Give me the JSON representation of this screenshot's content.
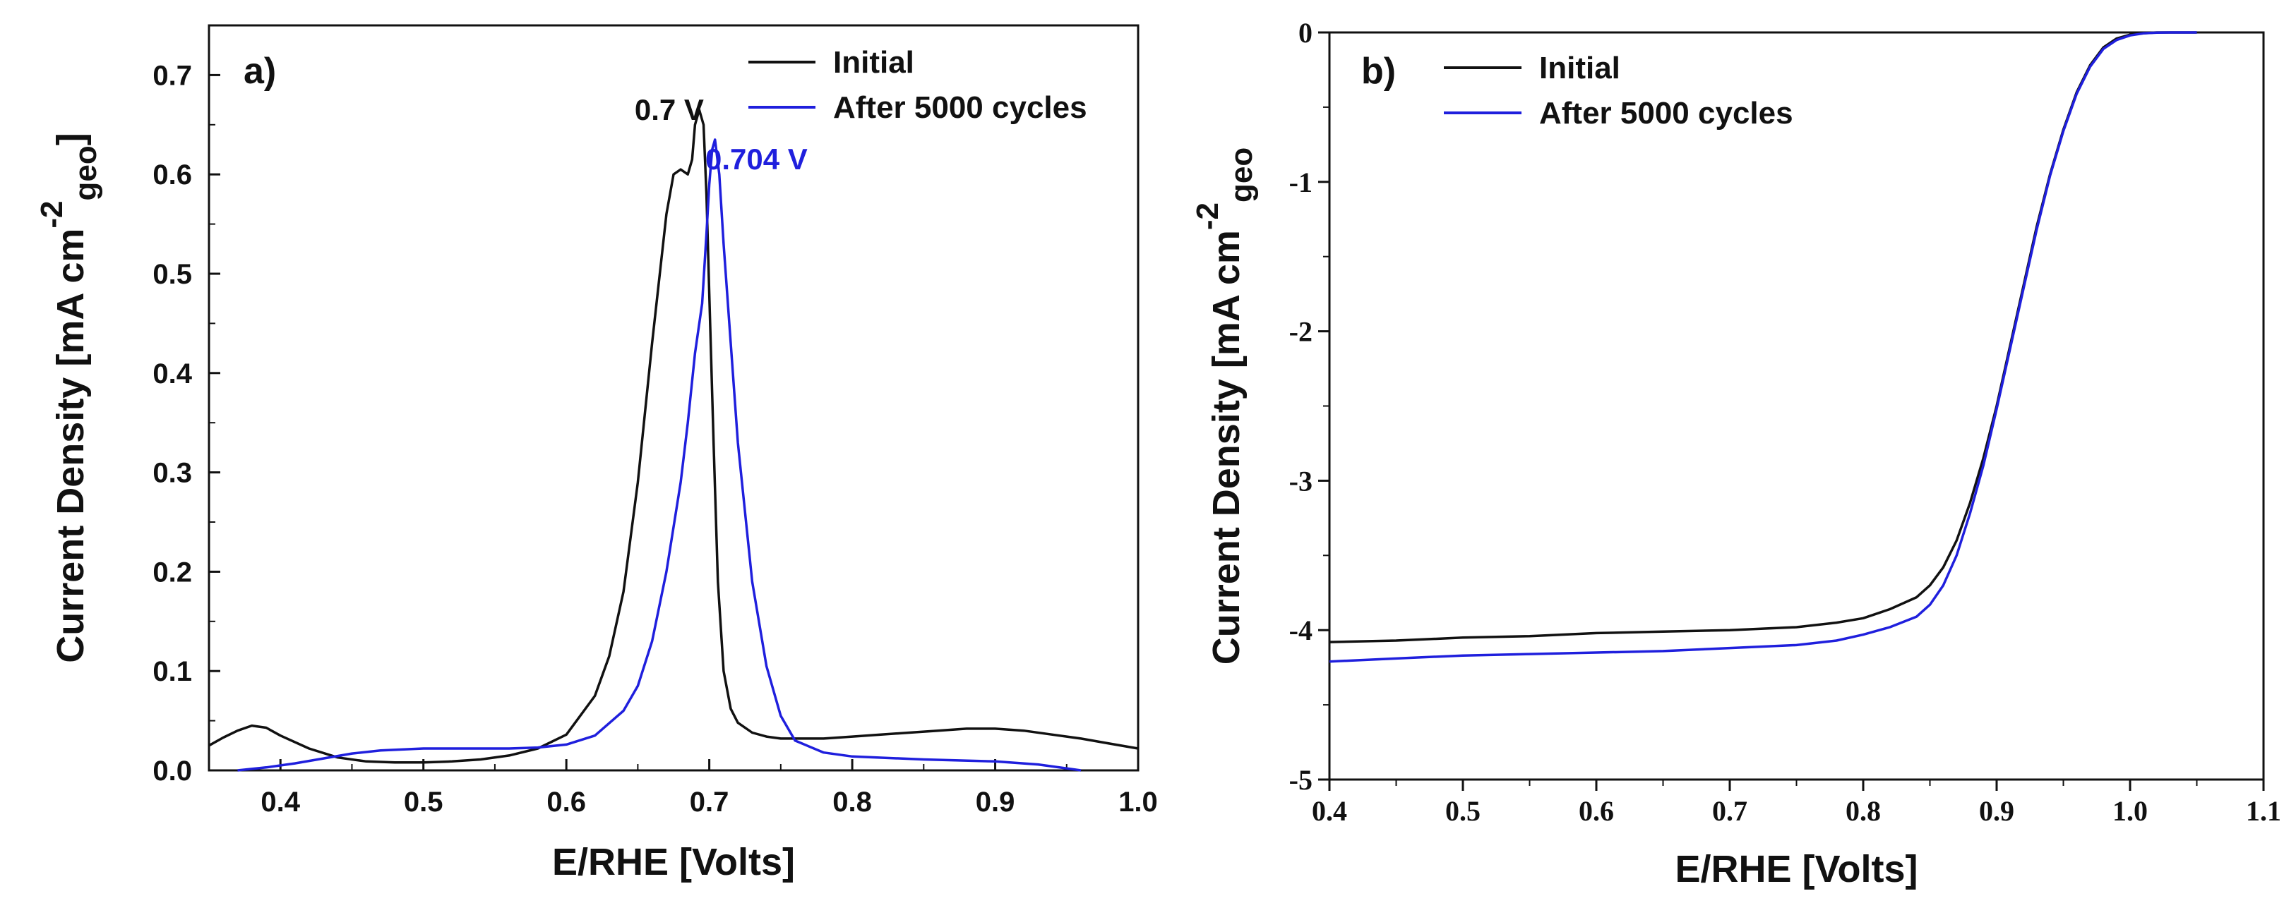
{
  "chart_data": [
    {
      "panel": "a)",
      "type": "line",
      "xlabel": "E/RHE [Volts]",
      "ylabel": "Current Density [mA cm",
      "ylabel_sup": "-2",
      "ylabel_sub": "geo",
      "ylabel_end": "]",
      "xlim": [
        0.35,
        1.0
      ],
      "ylim": [
        0.0,
        0.75
      ],
      "xticks": [
        0.4,
        0.5,
        0.6,
        0.7,
        0.8,
        0.9,
        1.0
      ],
      "xtick_labels": [
        "0.4",
        "0.5",
        "0.6",
        "0.7",
        "0.8",
        "0.9",
        "1.0"
      ],
      "yticks": [
        0.0,
        0.1,
        0.2,
        0.3,
        0.4,
        0.5,
        0.6,
        0.7
      ],
      "ytick_labels": [
        "0.0",
        "0.1",
        "0.2",
        "0.3",
        "0.4",
        "0.5",
        "0.6",
        "0.7"
      ],
      "legend": [
        "Initial",
        "After 5000 cycles"
      ],
      "annotations": [
        {
          "text": "0.7 V",
          "color": "#111111",
          "x": 0.672,
          "y": 0.655
        },
        {
          "text": "0.704 V",
          "color": "#1f1fdd",
          "x": 0.733,
          "y": 0.605
        }
      ],
      "series": [
        {
          "name": "Initial",
          "color": "#111111",
          "x": [
            0.35,
            0.36,
            0.37,
            0.38,
            0.39,
            0.4,
            0.42,
            0.44,
            0.46,
            0.48,
            0.5,
            0.52,
            0.54,
            0.56,
            0.58,
            0.6,
            0.62,
            0.63,
            0.64,
            0.65,
            0.66,
            0.67,
            0.675,
            0.68,
            0.685,
            0.688,
            0.69,
            0.693,
            0.696,
            0.698,
            0.7,
            0.703,
            0.706,
            0.71,
            0.715,
            0.72,
            0.73,
            0.74,
            0.75,
            0.76,
            0.78,
            0.8,
            0.82,
            0.84,
            0.86,
            0.88,
            0.9,
            0.92,
            0.94,
            0.96,
            0.98,
            1.0
          ],
          "y": [
            0.025,
            0.033,
            0.04,
            0.045,
            0.043,
            0.035,
            0.022,
            0.013,
            0.009,
            0.008,
            0.008,
            0.009,
            0.011,
            0.015,
            0.022,
            0.036,
            0.075,
            0.115,
            0.18,
            0.29,
            0.43,
            0.56,
            0.6,
            0.605,
            0.6,
            0.615,
            0.65,
            0.665,
            0.65,
            0.58,
            0.48,
            0.33,
            0.19,
            0.1,
            0.062,
            0.048,
            0.038,
            0.034,
            0.032,
            0.032,
            0.032,
            0.034,
            0.036,
            0.038,
            0.04,
            0.042,
            0.042,
            0.04,
            0.036,
            0.032,
            0.027,
            0.022
          ]
        },
        {
          "name": "After 5000 cycles",
          "color": "#1f1fdd",
          "x": [
            0.37,
            0.39,
            0.41,
            0.43,
            0.45,
            0.47,
            0.5,
            0.53,
            0.56,
            0.58,
            0.6,
            0.62,
            0.64,
            0.65,
            0.66,
            0.67,
            0.68,
            0.685,
            0.69,
            0.695,
            0.698,
            0.7,
            0.702,
            0.704,
            0.707,
            0.71,
            0.715,
            0.72,
            0.73,
            0.74,
            0.75,
            0.76,
            0.78,
            0.8,
            0.85,
            0.9,
            0.93,
            0.96
          ],
          "y": [
            0.0,
            0.003,
            0.007,
            0.012,
            0.017,
            0.02,
            0.022,
            0.022,
            0.022,
            0.023,
            0.026,
            0.035,
            0.06,
            0.085,
            0.13,
            0.2,
            0.29,
            0.35,
            0.42,
            0.47,
            0.54,
            0.59,
            0.625,
            0.635,
            0.6,
            0.53,
            0.43,
            0.33,
            0.19,
            0.105,
            0.055,
            0.03,
            0.018,
            0.014,
            0.011,
            0.009,
            0.006,
            0.0
          ]
        }
      ]
    },
    {
      "panel": "b)",
      "type": "line",
      "xlabel": "E/RHE [Volts]",
      "ylabel": "Current Density [mA cm",
      "ylabel_sup": "-2",
      "ylabel_sub": "geo",
      "xlim": [
        0.4,
        1.1
      ],
      "ylim": [
        -5,
        0
      ],
      "xticks": [
        0.4,
        0.5,
        0.6,
        0.7,
        0.8,
        0.9,
        1.0,
        1.1
      ],
      "xtick_labels": [
        "0.4",
        "0.5",
        "0.6",
        "0.7",
        "0.8",
        "0.9",
        "1.0",
        "1.1"
      ],
      "yticks": [
        0,
        -1,
        -2,
        -3,
        -4,
        -5
      ],
      "ytick_labels": [
        "0",
        "-1",
        "-2",
        "-3",
        "-4",
        "-5"
      ],
      "legend": [
        "Initial",
        "After 5000 cycles"
      ],
      "series": [
        {
          "name": "Initial",
          "color": "#111111",
          "x": [
            0.4,
            0.45,
            0.5,
            0.55,
            0.6,
            0.65,
            0.7,
            0.75,
            0.78,
            0.8,
            0.82,
            0.84,
            0.85,
            0.86,
            0.87,
            0.88,
            0.89,
            0.9,
            0.91,
            0.92,
            0.93,
            0.94,
            0.95,
            0.96,
            0.97,
            0.98,
            0.99,
            1.0,
            1.01,
            1.02,
            1.03,
            1.05
          ],
          "y": [
            -4.08,
            -4.07,
            -4.05,
            -4.04,
            -4.02,
            -4.01,
            -4.0,
            -3.98,
            -3.95,
            -3.92,
            -3.86,
            -3.78,
            -3.7,
            -3.58,
            -3.4,
            -3.15,
            -2.85,
            -2.5,
            -2.1,
            -1.7,
            -1.3,
            -0.95,
            -0.65,
            -0.4,
            -0.22,
            -0.1,
            -0.04,
            -0.015,
            -0.005,
            0.0,
            0.0,
            0.0
          ]
        },
        {
          "name": "After 5000 cycles",
          "color": "#1f1fdd",
          "x": [
            0.4,
            0.45,
            0.5,
            0.55,
            0.6,
            0.65,
            0.7,
            0.75,
            0.78,
            0.8,
            0.82,
            0.84,
            0.85,
            0.86,
            0.87,
            0.88,
            0.89,
            0.9,
            0.91,
            0.92,
            0.93,
            0.94,
            0.95,
            0.96,
            0.97,
            0.98,
            0.99,
            1.0,
            1.01,
            1.02,
            1.03,
            1.05
          ],
          "y": [
            -4.21,
            -4.19,
            -4.17,
            -4.16,
            -4.15,
            -4.14,
            -4.12,
            -4.1,
            -4.07,
            -4.03,
            -3.98,
            -3.91,
            -3.83,
            -3.7,
            -3.5,
            -3.22,
            -2.9,
            -2.52,
            -2.12,
            -1.72,
            -1.32,
            -0.96,
            -0.66,
            -0.41,
            -0.23,
            -0.11,
            -0.05,
            -0.02,
            -0.006,
            -0.001,
            0.0,
            0.0
          ]
        }
      ]
    }
  ]
}
